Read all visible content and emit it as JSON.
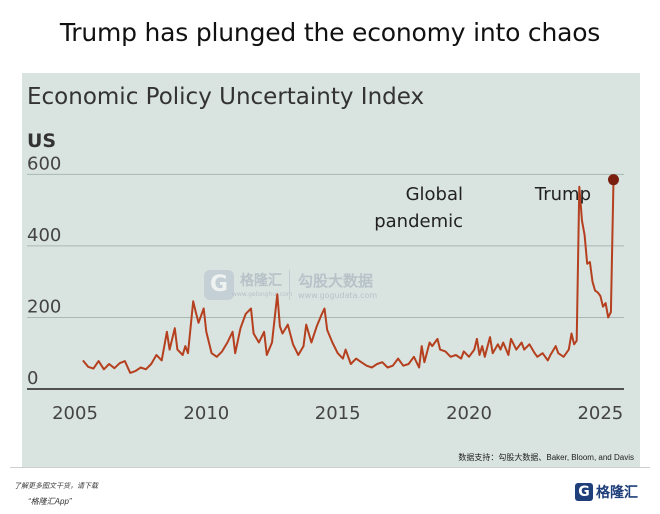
{
  "headline": "Trump has plunged the economy into chaos",
  "watermark": {
    "name": "格隆汇",
    "url": "www.gelonghui.com",
    "name2": "勾股大数据",
    "url2": "www.gogudata.com"
  },
  "source_note": "数据支持：勾股大数据、Baker, Bloom, and Davis",
  "footer": {
    "note1": "了解更多图文干货，请下载",
    "note2": "“格隆汇App”",
    "brand_mark": "G",
    "brand_name": "格隆汇"
  },
  "chart_data": {
    "type": "line",
    "title": "Economic Policy Uncertainty Index",
    "subtitle": "US",
    "xlabel": "",
    "ylabel": "",
    "xlim": [
      2005,
      2025.9
    ],
    "ylim": [
      0,
      640
    ],
    "x_ticks": [
      "2005",
      "2010",
      "2015",
      "2020",
      "2025"
    ],
    "y_ticks": [
      "0",
      "200",
      "400",
      "600"
    ],
    "grid": true,
    "line_color": "#b5401f",
    "end_point_color": "#7a1f10",
    "annotations": [
      {
        "text": [
          "Global",
          "pandemic"
        ],
        "x": 2020.2,
        "y": 550
      },
      {
        "text": [
          "Trump"
        ],
        "x": 2025.2,
        "y": 585
      }
    ],
    "series": [
      {
        "points": [
          [
            2005.3,
            80
          ],
          [
            2005.5,
            62
          ],
          [
            2005.7,
            57
          ],
          [
            2005.9,
            78
          ],
          [
            2006.1,
            55
          ],
          [
            2006.3,
            70
          ],
          [
            2006.5,
            58
          ],
          [
            2006.7,
            72
          ],
          [
            2006.9,
            78
          ],
          [
            2007.1,
            45
          ],
          [
            2007.3,
            50
          ],
          [
            2007.5,
            60
          ],
          [
            2007.7,
            55
          ],
          [
            2007.9,
            70
          ],
          [
            2008.1,
            95
          ],
          [
            2008.3,
            80
          ],
          [
            2008.5,
            160
          ],
          [
            2008.6,
            110
          ],
          [
            2008.8,
            170
          ],
          [
            2008.9,
            110
          ],
          [
            2009.1,
            95
          ],
          [
            2009.2,
            120
          ],
          [
            2009.3,
            100
          ],
          [
            2009.5,
            245
          ],
          [
            2009.6,
            215
          ],
          [
            2009.7,
            185
          ],
          [
            2009.9,
            225
          ],
          [
            2010.0,
            160
          ],
          [
            2010.2,
            100
          ],
          [
            2010.4,
            90
          ],
          [
            2010.6,
            105
          ],
          [
            2010.8,
            130
          ],
          [
            2011.0,
            160
          ],
          [
            2011.1,
            100
          ],
          [
            2011.3,
            170
          ],
          [
            2011.5,
            210
          ],
          [
            2011.7,
            225
          ],
          [
            2011.8,
            155
          ],
          [
            2012.0,
            130
          ],
          [
            2012.2,
            160
          ],
          [
            2012.3,
            95
          ],
          [
            2012.5,
            130
          ],
          [
            2012.7,
            265
          ],
          [
            2012.8,
            175
          ],
          [
            2012.9,
            155
          ],
          [
            2013.1,
            180
          ],
          [
            2013.3,
            125
          ],
          [
            2013.5,
            95
          ],
          [
            2013.7,
            120
          ],
          [
            2013.8,
            180
          ],
          [
            2014.0,
            130
          ],
          [
            2014.2,
            175
          ],
          [
            2014.4,
            210
          ],
          [
            2014.5,
            225
          ],
          [
            2014.6,
            165
          ],
          [
            2014.8,
            130
          ],
          [
            2015.0,
            100
          ],
          [
            2015.2,
            85
          ],
          [
            2015.3,
            110
          ],
          [
            2015.5,
            70
          ],
          [
            2015.7,
            85
          ],
          [
            2015.9,
            75
          ],
          [
            2016.1,
            65
          ],
          [
            2016.3,
            60
          ],
          [
            2016.5,
            70
          ],
          [
            2016.7,
            75
          ],
          [
            2016.9,
            60
          ],
          [
            2017.1,
            65
          ],
          [
            2017.3,
            85
          ],
          [
            2017.5,
            65
          ],
          [
            2017.7,
            70
          ],
          [
            2017.9,
            90
          ],
          [
            2018.1,
            60
          ],
          [
            2018.2,
            120
          ],
          [
            2018.3,
            75
          ],
          [
            2018.5,
            130
          ],
          [
            2018.6,
            120
          ],
          [
            2018.8,
            140
          ],
          [
            2018.9,
            110
          ],
          [
            2019.1,
            105
          ],
          [
            2019.3,
            90
          ],
          [
            2019.5,
            95
          ],
          [
            2019.7,
            85
          ],
          [
            2019.8,
            105
          ],
          [
            2020.0,
            90
          ],
          [
            2020.2,
            110
          ],
          [
            2020.3,
            140
          ],
          [
            2020.4,
            95
          ],
          [
            2020.5,
            120
          ],
          [
            2020.6,
            90
          ],
          [
            2020.8,
            145
          ],
          [
            2020.9,
            100
          ],
          [
            2021.1,
            125
          ],
          [
            2021.2,
            110
          ],
          [
            2021.3,
            130
          ],
          [
            2021.5,
            95
          ],
          [
            2021.6,
            140
          ],
          [
            2021.8,
            110
          ],
          [
            2022.0,
            130
          ],
          [
            2022.1,
            110
          ],
          [
            2022.3,
            125
          ],
          [
            2022.5,
            100
          ],
          [
            2022.6,
            90
          ],
          [
            2022.8,
            100
          ],
          [
            2023.0,
            80
          ],
          [
            2023.1,
            95
          ],
          [
            2023.3,
            120
          ],
          [
            2023.4,
            100
          ],
          [
            2023.6,
            90
          ],
          [
            2023.8,
            110
          ],
          [
            2023.9,
            155
          ],
          [
            2024.0,
            125
          ],
          [
            2024.1,
            135
          ],
          [
            2024.2,
            565
          ],
          [
            2024.3,
            470
          ],
          [
            2024.4,
            430
          ],
          [
            2024.5,
            350
          ],
          [
            2024.6,
            355
          ],
          [
            2024.7,
            300
          ],
          [
            2024.8,
            275
          ],
          [
            2024.9,
            270
          ],
          [
            2025.0,
            260
          ],
          [
            2025.1,
            230
          ],
          [
            2025.2,
            240
          ],
          [
            2025.3,
            200
          ],
          [
            2025.4,
            215
          ],
          [
            2025.5,
            585
          ]
        ]
      }
    ]
  }
}
